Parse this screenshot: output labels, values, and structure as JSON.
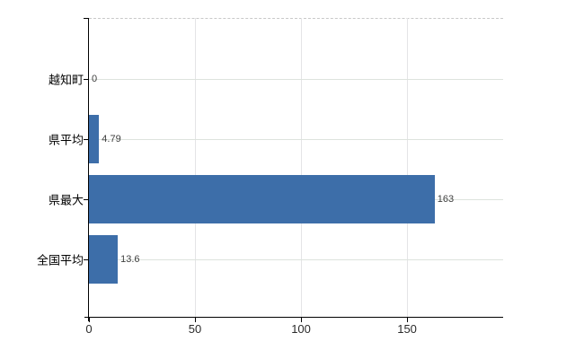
{
  "chart_data": {
    "type": "bar",
    "orientation": "horizontal",
    "title": "",
    "xlabel": "",
    "ylabel": "",
    "categories": [
      "越知町",
      "県平均",
      "県最大",
      "全国平均"
    ],
    "values": [
      0,
      4.79,
      163,
      13.6
    ],
    "value_labels": [
      "0",
      "4.79",
      "163",
      "13.6"
    ],
    "x_tick_labels": [
      "0",
      "50",
      "100",
      "150"
    ],
    "x_tick_values": [
      0,
      50,
      100,
      150
    ],
    "xlim": [
      0,
      195.3
    ],
    "grid": true,
    "legend": "none",
    "bar_color": "#3d6ea9",
    "value_label_color": "#404040",
    "axis_color": "#000000",
    "h_gridline_color": "#dde3dd",
    "v_gridline_color": "#e4e4e6",
    "top_border_color": "#c8c8c8"
  }
}
